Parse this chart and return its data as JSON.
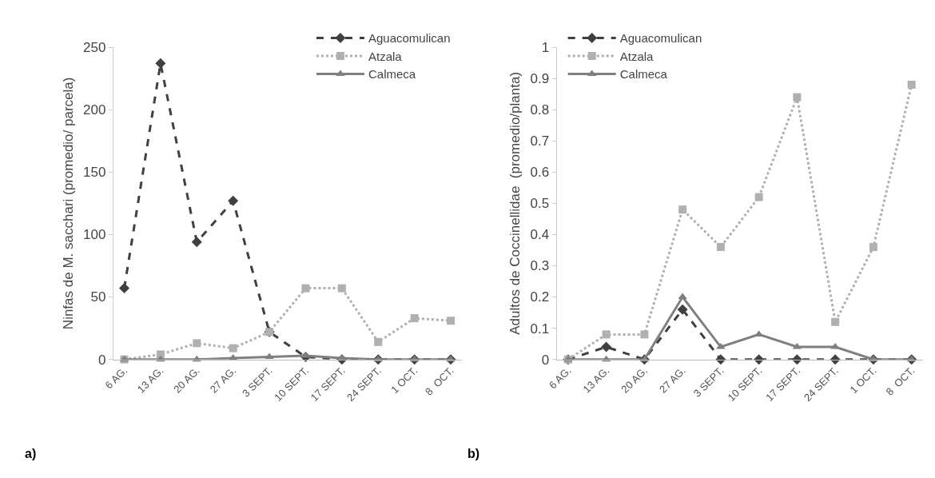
{
  "chart_data": [
    {
      "type": "line",
      "ylabel": "Ninfas de M. sacchari (promedio/ parcela)",
      "annotations": [
        "a)"
      ],
      "categories": [
        "6 AG.",
        "13 AG.",
        "20 AG.",
        "27 AG.",
        "3 SEPT.",
        "10 SEPT.",
        "17 SEPT.",
        "24 SEPT.",
        "1 OCT.",
        "8  OCT."
      ],
      "ylim": [
        0,
        250
      ],
      "yticks": [
        0,
        50,
        100,
        150,
        200,
        250
      ],
      "legend": "top right",
      "series": [
        {
          "name": "Aguacomulican",
          "color": "#404040",
          "marker": "diamond",
          "line_style": "dashed",
          "values": [
            57,
            237,
            94,
            127,
            22,
            2,
            0,
            0,
            0,
            0
          ]
        },
        {
          "name": "Atzala",
          "color": "#b0b0b0",
          "marker": "square",
          "line_style": "dotted",
          "values": [
            0,
            4,
            13,
            9,
            22,
            57,
            57,
            14,
            33,
            31
          ]
        },
        {
          "name": "Calmeca",
          "color": "#7f7f7f",
          "marker": "triangle",
          "line_style": "solid",
          "values": [
            0,
            0,
            0,
            1,
            2,
            3,
            1,
            0,
            0,
            0
          ]
        }
      ]
    },
    {
      "type": "line",
      "ylabel": "Adultos de Coccinellidae  (promedio/planta)",
      "annotations": [
        "b)"
      ],
      "categories": [
        "6 AG.",
        "13 AG.",
        "20 AG.",
        "27 AG.",
        "3 SEPT.",
        "10 SEPT.",
        "17 SEPT.",
        "24 SEPT.",
        "1 OCT.",
        "8  OCT."
      ],
      "ylim": [
        0,
        1
      ],
      "yticks": [
        0,
        0.1,
        0.2,
        0.3,
        0.4,
        0.5,
        0.6,
        0.7,
        0.8,
        0.9,
        1
      ],
      "legend": "top left",
      "series": [
        {
          "name": "Aguacomulican",
          "color": "#404040",
          "marker": "diamond",
          "line_style": "dashed",
          "values": [
            0,
            0.04,
            0,
            0.16,
            0,
            0,
            0,
            0,
            0,
            0
          ]
        },
        {
          "name": "Atzala",
          "color": "#b0b0b0",
          "marker": "square",
          "line_style": "dotted",
          "values": [
            0,
            0.08,
            0.08,
            0.48,
            0.36,
            0.52,
            0.84,
            0.12,
            0.36,
            0.88
          ]
        },
        {
          "name": "Calmeca",
          "color": "#7f7f7f",
          "marker": "triangle",
          "line_style": "solid",
          "values": [
            0,
            0,
            0,
            0.2,
            0.04,
            0.08,
            0.04,
            0.04,
            0,
            0
          ]
        }
      ]
    }
  ]
}
